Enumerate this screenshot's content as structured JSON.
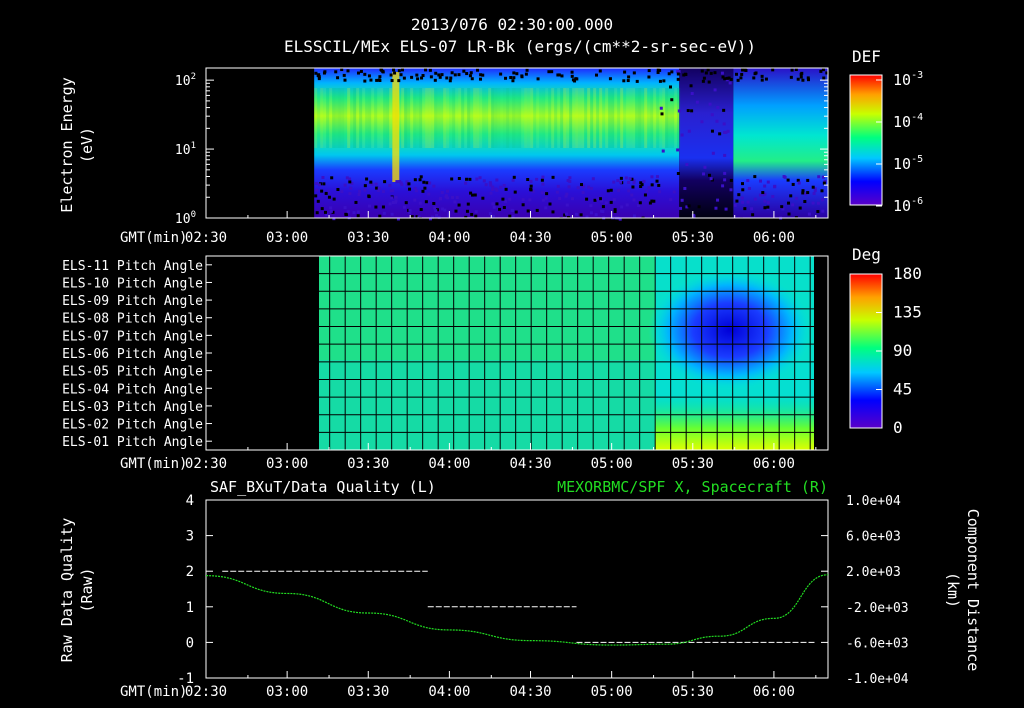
{
  "header": {
    "date": "2013/076 02:30:00.000",
    "subtitle": "ELSSCIL/MEx ELS-07 LR-Bk  (ergs/(cm**2-sr-sec-eV))"
  },
  "time_axis": {
    "prefix": "GMT(min)",
    "ticks": [
      "02:30",
      "03:00",
      "03:30",
      "04:00",
      "04:30",
      "05:00",
      "05:30",
      "06:00"
    ]
  },
  "colors": {
    "background": "#000000",
    "text": "#ffffff",
    "spacecraft_line": "#22dd22",
    "quality_line": "#ffffff",
    "right_title": "#22dd22"
  },
  "chart_data": [
    {
      "type": "heatmap",
      "ylabel_line1": "Electron Energy",
      "ylabel_line2": "(eV)",
      "y_scale": "log",
      "ylim": [
        1,
        150
      ],
      "y_ticks": [
        {
          "base": "10",
          "exp": "2",
          "value": 100
        },
        {
          "base": "10",
          "exp": "1",
          "value": 10
        },
        {
          "base": "10",
          "exp": "0",
          "value": 1
        }
      ],
      "colorbar": {
        "title": "DEF",
        "labels": [
          {
            "base": "10",
            "exp": "-3"
          },
          {
            "base": "10",
            "exp": "-4"
          },
          {
            "base": "10",
            "exp": "-5"
          },
          {
            "base": "10",
            "exp": "-6"
          }
        ]
      },
      "data_start": "03:10",
      "data_end": "06:20",
      "bands": [
        {
          "from": "03:10",
          "to": "05:25",
          "level": "green-yellow peak 20-40 eV"
        },
        {
          "from": "05:25",
          "to": "05:45",
          "level": "blue/low"
        },
        {
          "from": "05:45",
          "to": "06:20",
          "level": "cyan-green"
        }
      ]
    },
    {
      "type": "heatmap",
      "colorbar": {
        "title": "Deg",
        "labels": [
          "180",
          "135",
          "90",
          "45",
          "0"
        ]
      },
      "rows": [
        "ELS-11 Pitch Angle",
        "ELS-10 Pitch Angle",
        "ELS-09 Pitch Angle",
        "ELS-08 Pitch Angle",
        "ELS-07 Pitch Angle",
        "ELS-06 Pitch Angle",
        "ELS-05 Pitch Angle",
        "ELS-04 Pitch Angle",
        "ELS-03 Pitch Angle",
        "ELS-02 Pitch Angle",
        "ELS-01 Pitch Angle"
      ],
      "data_start": "03:10",
      "data_end": "06:20",
      "column_step_min": 6,
      "anomaly": {
        "from": "05:15",
        "to": "06:10",
        "min_deg": 25
      }
    },
    {
      "type": "line",
      "title_left": "SAF_BXuT/Data Quality (L)",
      "title_right": "MEXORBMC/SPF X, Spacecraft (R)",
      "ylabel_left_line1": "Raw Data Quality",
      "ylabel_left_line2": "(Raw)",
      "ylabel_right_line1": "Component Distance",
      "ylabel_right_line2": "(km)",
      "ylim_left": [
        -1,
        4
      ],
      "y_ticks_left": [
        "4",
        "3",
        "2",
        "1",
        "0",
        "-1"
      ],
      "ylim_right": [
        -10000,
        10000
      ],
      "y_ticks_right": [
        "1.0e+04",
        "6.0e+03",
        "2.0e+03",
        "-2.0e+03",
        "-6.0e+03",
        "-1.0e+04"
      ],
      "series": [
        {
          "axis": "left",
          "segments": [
            {
              "from": "02:36",
              "to": "03:52",
              "value": 2
            },
            {
              "from": "03:52",
              "to": "04:47",
              "value": 1
            },
            {
              "from": "04:47",
              "to": "06:15",
              "value": 0
            }
          ]
        },
        {
          "axis": "right",
          "points": [
            {
              "t": "02:30",
              "v": 1500
            },
            {
              "t": "03:00",
              "v": -500
            },
            {
              "t": "03:30",
              "v": -2700
            },
            {
              "t": "04:00",
              "v": -4600
            },
            {
              "t": "04:30",
              "v": -5800
            },
            {
              "t": "05:00",
              "v": -6300
            },
            {
              "t": "05:20",
              "v": -6200
            },
            {
              "t": "05:40",
              "v": -5300
            },
            {
              "t": "06:00",
              "v": -3300
            },
            {
              "t": "06:20",
              "v": 1600
            }
          ]
        }
      ]
    }
  ]
}
